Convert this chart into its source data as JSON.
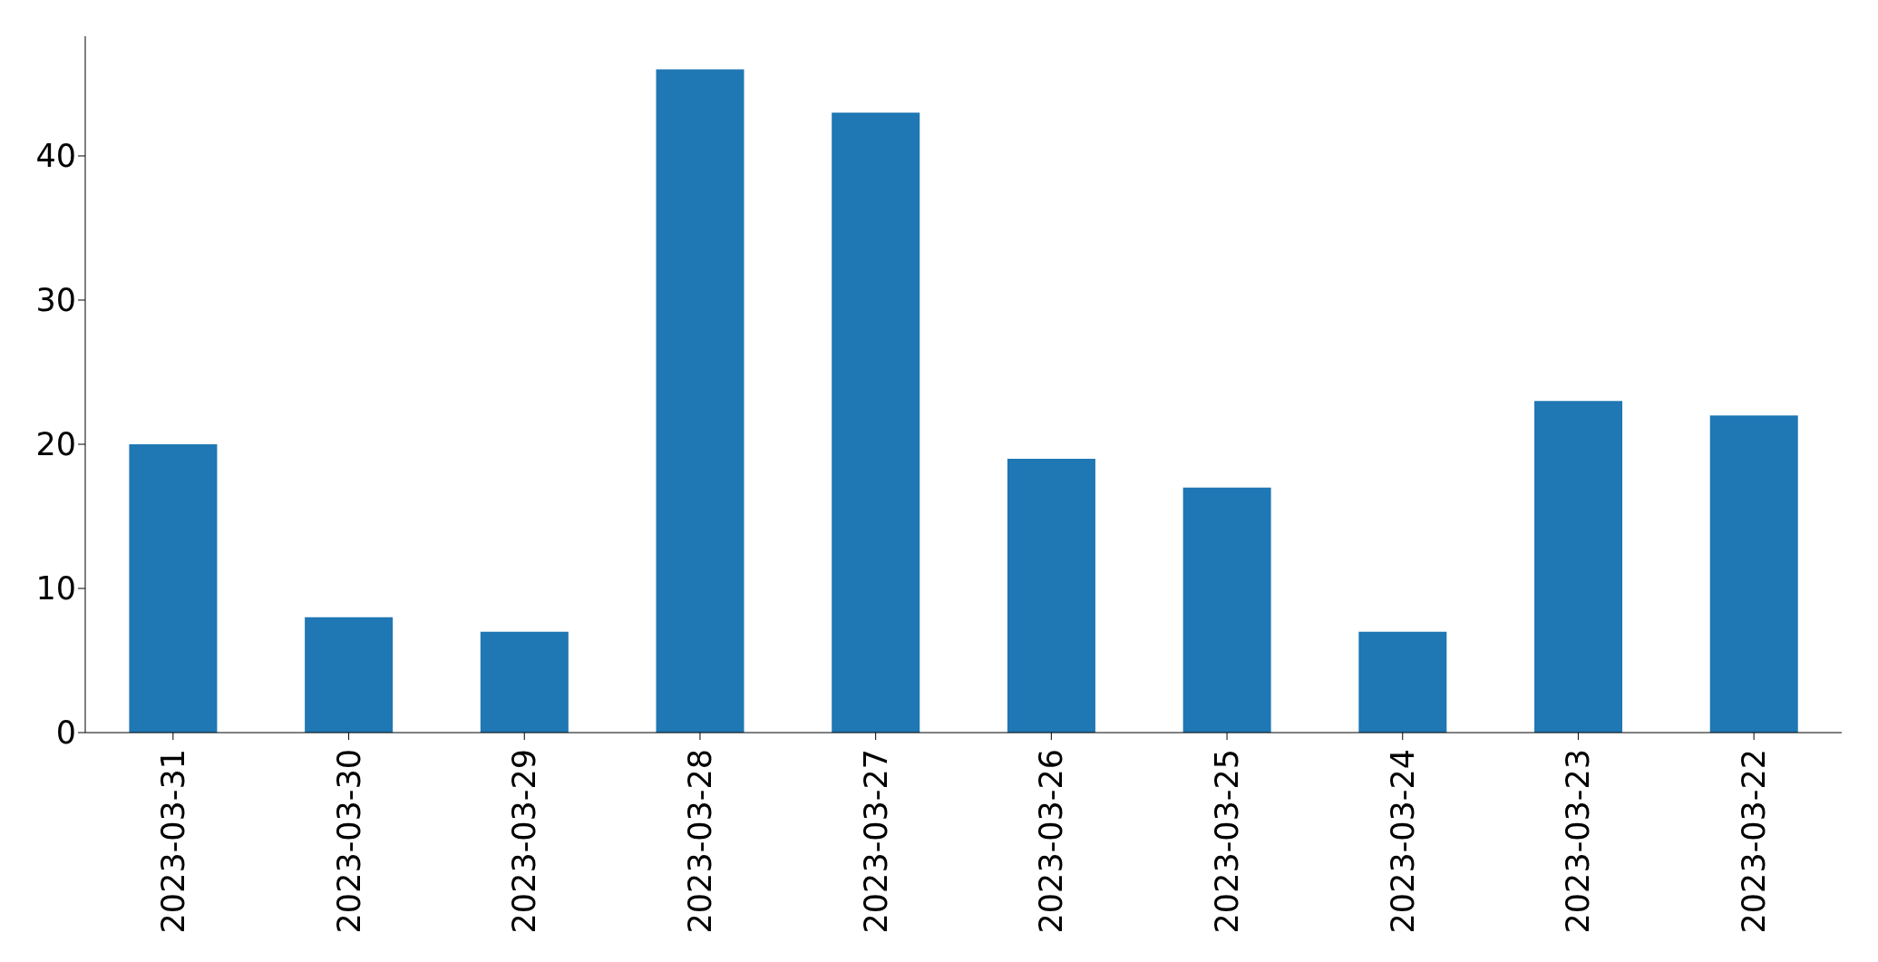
{
  "chart_data": {
    "type": "bar",
    "categories": [
      "2023-03-31",
      "2023-03-30",
      "2023-03-29",
      "2023-03-28",
      "2023-03-27",
      "2023-03-26",
      "2023-03-25",
      "2023-03-24",
      "2023-03-23",
      "2023-03-22"
    ],
    "values": [
      20,
      8,
      7,
      46,
      43,
      19,
      17,
      7,
      23,
      22
    ],
    "color": "#1f77b4",
    "ylim": [
      0,
      48.3
    ],
    "yticks": [
      0,
      10,
      20,
      30,
      40
    ]
  }
}
